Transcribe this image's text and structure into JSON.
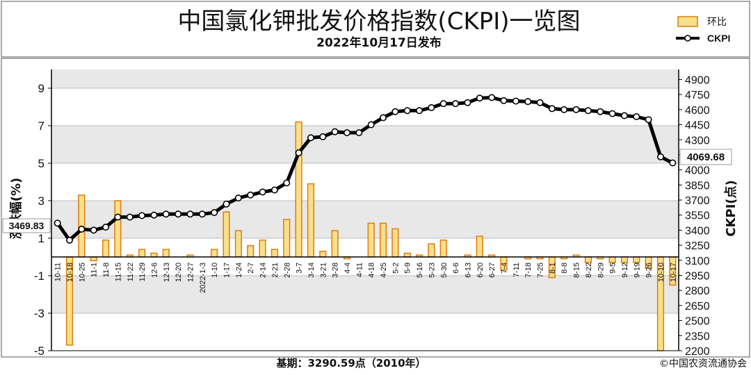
{
  "title": "中国氯化钾批发价格指数(CKPI)一览图",
  "subtitle": "2022年10月17日发布",
  "legend": {
    "bar": "环比",
    "line": "CKPI"
  },
  "footer": {
    "base": "基期：3290.59点（2010年）",
    "copyright": "©中国农资流通协会"
  },
  "colors": {
    "bar_fill": "#f7e08a",
    "bar_edge": "#e07a10",
    "line": "#000000",
    "plot_band": "#e8e8e8"
  },
  "chart_data": {
    "type": "bar+line",
    "title": "中国氯化钾批发价格指数(CKPI)一览图",
    "subtitle": "2022年10月17日发布",
    "ylabel_left": "涨跌幅(%)",
    "ylabel_right": "CKPI(点)",
    "left_ylim": [
      -5,
      10
    ],
    "right_ylim": [
      2200,
      5000
    ],
    "left_ticks": [
      -5,
      -3,
      -1,
      1,
      3,
      5,
      7,
      9
    ],
    "right_ticks": [
      2200,
      2350,
      2500,
      2650,
      2800,
      2950,
      3100,
      3250,
      3400,
      3550,
      3700,
      3850,
      4000,
      4150,
      4300,
      4450,
      4600,
      4750,
      4900
    ],
    "grid": true,
    "legend_position": "top-right",
    "categories": [
      "10-11",
      "10-18",
      "10-25",
      "11-1",
      "11-8",
      "11-15",
      "11-22",
      "11-29",
      "12-6",
      "12-13",
      "12-20",
      "12-27",
      "2022-1-3",
      "1-10",
      "1-17",
      "1-24",
      "2-7",
      "2-14",
      "2-21",
      "2-28",
      "3-7",
      "3-14",
      "3-21",
      "3-28",
      "4-4",
      "4-11",
      "4-18",
      "4-25",
      "5-2",
      "5-9",
      "5-16",
      "5-23",
      "5-30",
      "6-6",
      "6-13",
      "6-20",
      "6-27",
      "7-4",
      "7-11",
      "7-18",
      "7-25",
      "8-1",
      "8-8",
      "8-15",
      "8-22",
      "8-29",
      "9-5",
      "9-12",
      "9-19",
      "9-26",
      "10-10",
      "10-17"
    ],
    "series": [
      {
        "name": "环比",
        "kind": "bar",
        "axis": "left",
        "values": [
          0.0,
          -4.7,
          3.3,
          -0.2,
          0.9,
          3.0,
          0.1,
          0.4,
          0.2,
          0.4,
          0.0,
          0.1,
          0.0,
          0.4,
          2.4,
          1.4,
          0.6,
          0.9,
          0.4,
          2.0,
          7.2,
          3.9,
          0.3,
          1.4,
          -0.1,
          0.0,
          1.8,
          1.8,
          1.5,
          0.2,
          0.1,
          0.7,
          0.9,
          0.0,
          0.1,
          1.1,
          0.1,
          -0.7,
          0.0,
          -0.1,
          -0.1,
          -1.1,
          -0.1,
          0.1,
          -0.3,
          -0.1,
          -0.3,
          -0.3,
          -0.3,
          -0.6,
          -5.0,
          -1.5
        ]
      },
      {
        "name": "CKPI",
        "kind": "line",
        "axis": "right",
        "values": [
          3469.83,
          3300,
          3410,
          3400,
          3430,
          3530,
          3530,
          3545,
          3550,
          3560,
          3560,
          3560,
          3560,
          3575,
          3660,
          3720,
          3750,
          3780,
          3800,
          3870,
          4170,
          4320,
          4330,
          4380,
          4370,
          4370,
          4450,
          4520,
          4580,
          4590,
          4590,
          4620,
          4660,
          4660,
          4670,
          4715,
          4720,
          4690,
          4685,
          4680,
          4670,
          4610,
          4600,
          4600,
          4590,
          4580,
          4560,
          4540,
          4530,
          4500,
          4130,
          4069.68
        ]
      }
    ],
    "annotations": {
      "first_value": "3469.83",
      "last_value": "4069.68"
    }
  }
}
